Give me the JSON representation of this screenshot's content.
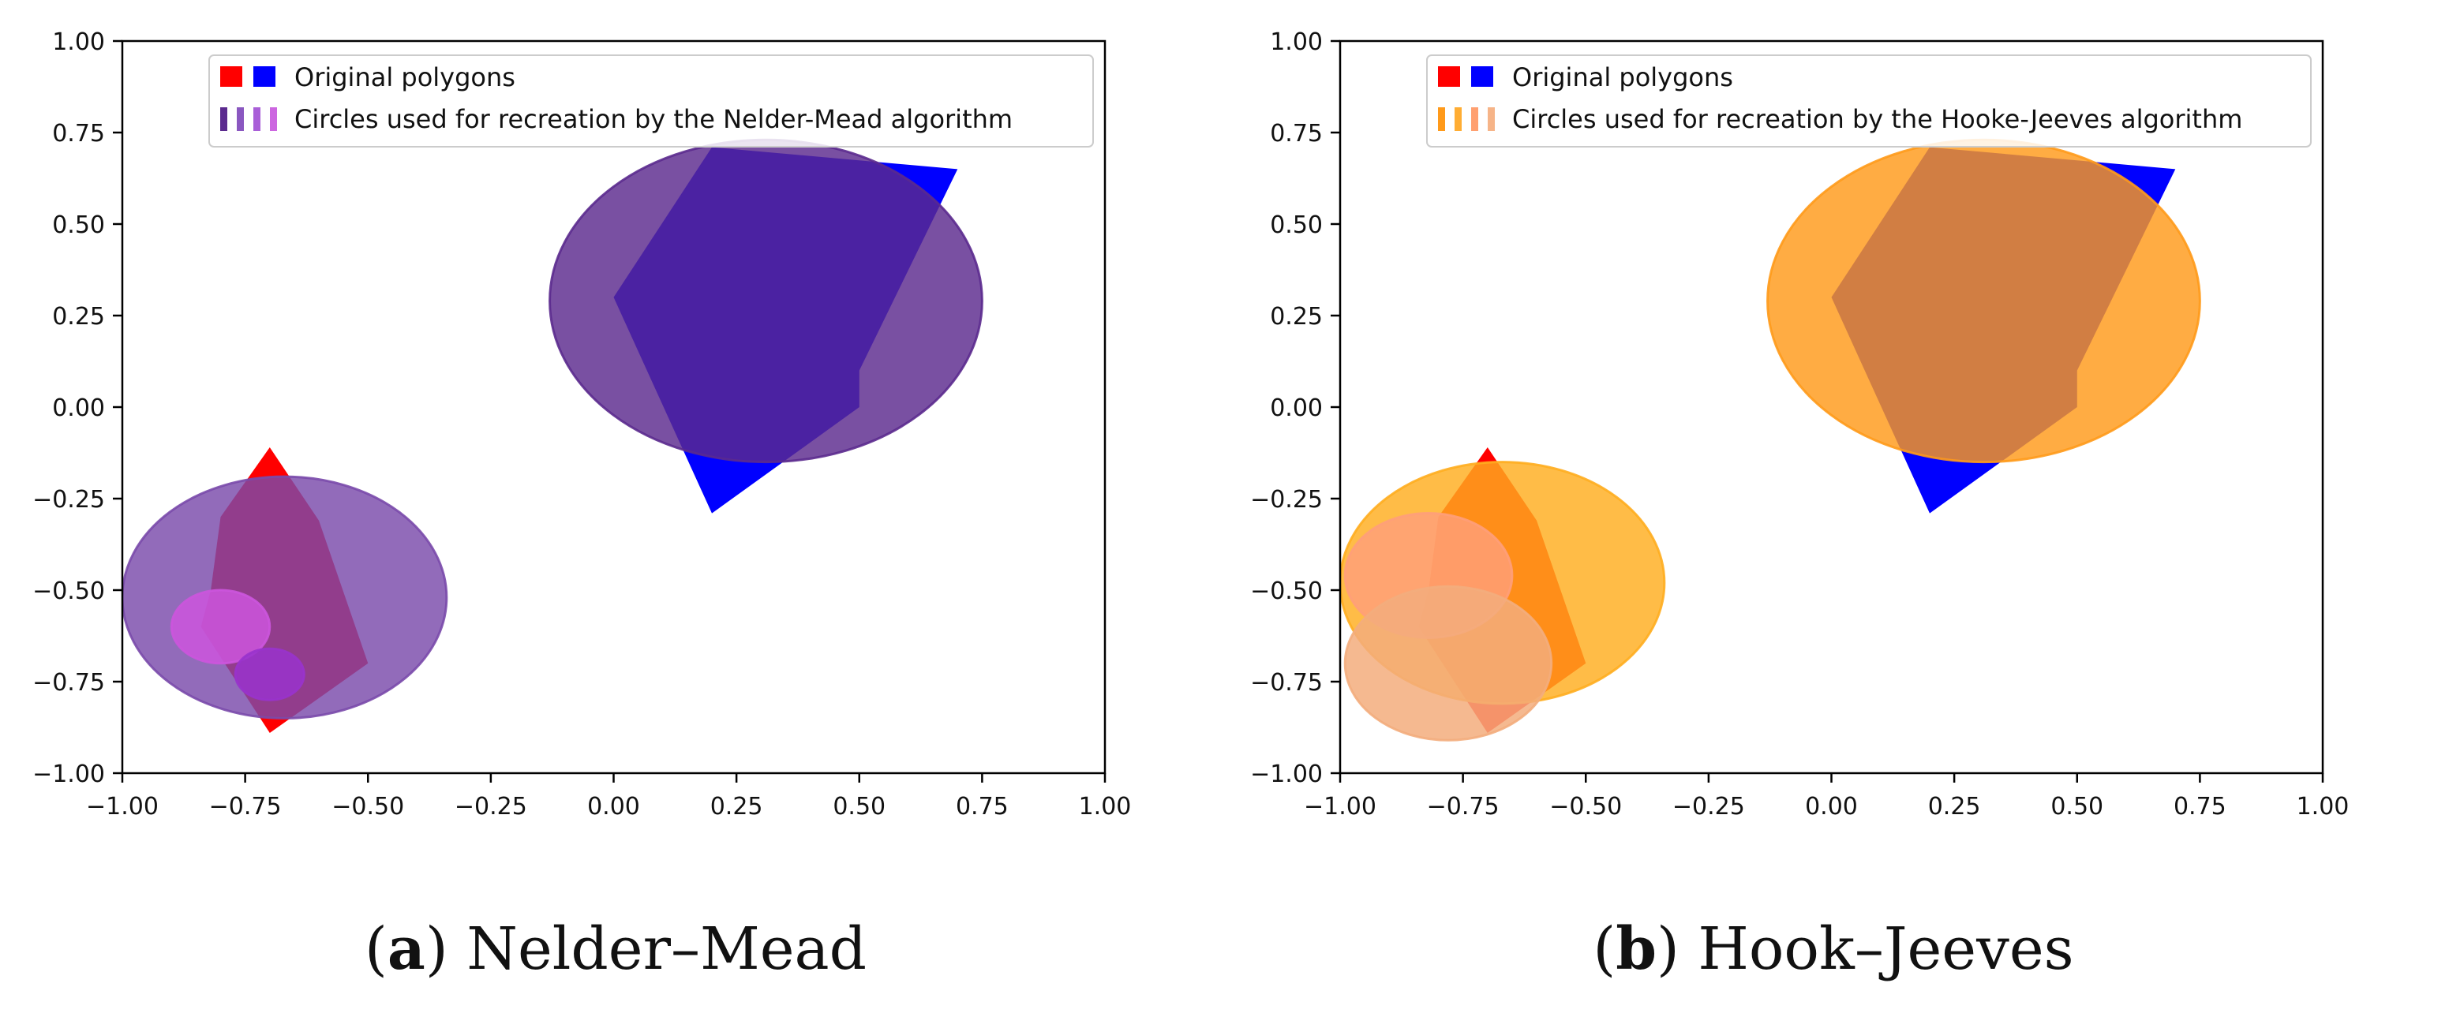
{
  "chart_data": [
    {
      "type": "scatter",
      "caption": {
        "letter": "a",
        "text": " Nelder–Mead"
      },
      "xlim": [
        -1.0,
        1.0
      ],
      "ylim": [
        -1.0,
        1.0
      ],
      "xticks": [
        "−1.00",
        "−0.75",
        "−0.50",
        "−0.25",
        "0.00",
        "0.25",
        "0.50",
        "0.75",
        "1.00"
      ],
      "yticks": [
        "1.00",
        "0.75",
        "0.50",
        "0.25",
        "0.00",
        "−0.25",
        "−0.50",
        "−0.75",
        "−1.00"
      ],
      "xtick_values": [
        -1.0,
        -0.75,
        -0.5,
        -0.25,
        0.0,
        0.25,
        0.5,
        0.75,
        1.0
      ],
      "ytick_values": [
        1.0,
        0.75,
        0.5,
        0.25,
        0.0,
        -0.25,
        -0.5,
        -0.75,
        -1.0
      ],
      "legend": {
        "position": "upper center",
        "entries": [
          {
            "label": "Original polygons",
            "swatch": "squares",
            "colors": [
              "#ff0000",
              "#0000ff"
            ]
          },
          {
            "label": "Circles used for recreation by the Nelder-Mead algorithm",
            "swatch": "bars",
            "colors": [
              "#5b2a8e",
              "#8a57c0",
              "#a95fd8",
              "#cc66e0"
            ]
          }
        ]
      },
      "polygons": [
        {
          "color": "#ff0000",
          "points": [
            [
              -0.7,
              -0.11
            ],
            [
              -0.6,
              -0.31
            ],
            [
              -0.5,
              -0.7
            ],
            [
              -0.7,
              -0.89
            ],
            [
              -0.84,
              -0.6
            ],
            [
              -0.82,
              -0.5
            ],
            [
              -0.8,
              -0.3
            ]
          ]
        },
        {
          "color": "#0000ff",
          "points": [
            [
              0.2,
              0.71
            ],
            [
              0.7,
              0.65
            ],
            [
              0.5,
              0.1
            ],
            [
              0.5,
              0.0
            ],
            [
              0.2,
              -0.29
            ],
            [
              0.0,
              0.3
            ]
          ]
        }
      ],
      "circles": [
        {
          "cx": 0.31,
          "cy": 0.29,
          "rx": 0.44,
          "ry": 0.44,
          "color": "#5b2a8e",
          "opacity": 0.82
        },
        {
          "cx": -0.67,
          "cy": -0.52,
          "rx": 0.33,
          "ry": 0.33,
          "color": "#7a4aab",
          "opacity": 0.82
        },
        {
          "cx": -0.8,
          "cy": -0.6,
          "rx": 0.1,
          "ry": 0.1,
          "color": "#cc55dd",
          "opacity": 0.85
        },
        {
          "cx": -0.7,
          "cy": -0.73,
          "rx": 0.07,
          "ry": 0.07,
          "color": "#9933cc",
          "opacity": 0.85
        }
      ]
    },
    {
      "type": "scatter",
      "caption": {
        "letter": "b",
        "text": " Hook–Jeeves"
      },
      "xlim": [
        -1.0,
        1.0
      ],
      "ylim": [
        -1.0,
        1.0
      ],
      "xticks": [
        "−1.00",
        "−0.75",
        "−0.50",
        "−0.25",
        "0.00",
        "0.25",
        "0.50",
        "0.75",
        "1.00"
      ],
      "yticks": [
        "1.00",
        "0.75",
        "0.50",
        "0.25",
        "0.00",
        "−0.25",
        "−0.50",
        "−0.75",
        "−1.00"
      ],
      "xtick_values": [
        -1.0,
        -0.75,
        -0.5,
        -0.25,
        0.0,
        0.25,
        0.5,
        0.75,
        1.0
      ],
      "ytick_values": [
        1.0,
        0.75,
        0.5,
        0.25,
        0.0,
        -0.25,
        -0.5,
        -0.75,
        -1.0
      ],
      "legend": {
        "position": "upper center",
        "entries": [
          {
            "label": "Original polygons",
            "swatch": "squares",
            "colors": [
              "#ff0000",
              "#0000ff"
            ]
          },
          {
            "label": "Circles used for recreation by the Hooke-Jeeves algorithm",
            "swatch": "bars",
            "colors": [
              "#ff9a1a",
              "#ffad33",
              "#ffa070",
              "#f6b488"
            ]
          }
        ]
      },
      "polygons": [
        {
          "color": "#ff0000",
          "points": [
            [
              -0.7,
              -0.11
            ],
            [
              -0.6,
              -0.31
            ],
            [
              -0.5,
              -0.7
            ],
            [
              -0.7,
              -0.89
            ],
            [
              -0.84,
              -0.6
            ],
            [
              -0.82,
              -0.5
            ],
            [
              -0.8,
              -0.3
            ]
          ]
        },
        {
          "color": "#0000ff",
          "points": [
            [
              0.2,
              0.71
            ],
            [
              0.7,
              0.65
            ],
            [
              0.5,
              0.1
            ],
            [
              0.5,
              0.0
            ],
            [
              0.2,
              -0.29
            ],
            [
              0.0,
              0.3
            ]
          ]
        }
      ],
      "circles": [
        {
          "cx": 0.31,
          "cy": 0.29,
          "rx": 0.44,
          "ry": 0.44,
          "color": "#ff9a1a",
          "opacity": 0.82
        },
        {
          "cx": -0.67,
          "cy": -0.48,
          "rx": 0.33,
          "ry": 0.33,
          "color": "#ffad1f",
          "opacity": 0.82
        },
        {
          "cx": -0.82,
          "cy": -0.46,
          "rx": 0.17,
          "ry": 0.17,
          "color": "#ff9f7a",
          "opacity": 0.82
        },
        {
          "cx": -0.78,
          "cy": -0.7,
          "rx": 0.21,
          "ry": 0.21,
          "color": "#f3ad7d",
          "opacity": 0.85
        }
      ]
    }
  ]
}
